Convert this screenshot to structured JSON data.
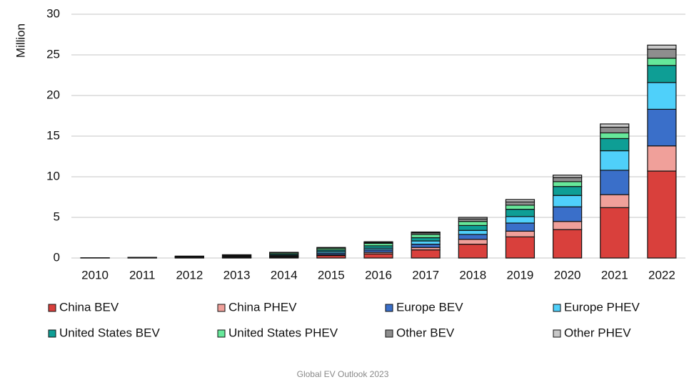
{
  "chart_data": {
    "type": "stacked_bar",
    "y_label": "Million",
    "categories": [
      "2010",
      "2011",
      "2012",
      "2013",
      "2014",
      "2015",
      "2016",
      "2017",
      "2018",
      "2019",
      "2020",
      "2021",
      "2022"
    ],
    "series": [
      {
        "name": "China BEV",
        "color": "#d9403c",
        "values": [
          0.01,
          0.01,
          0.02,
          0.03,
          0.1,
          0.3,
          0.5,
          1.0,
          1.7,
          2.6,
          3.5,
          6.2,
          10.7
        ]
      },
      {
        "name": "China PHEV",
        "color": "#f0a09a",
        "values": [
          0,
          0,
          0,
          0.01,
          0.03,
          0.1,
          0.2,
          0.3,
          0.6,
          0.7,
          1.0,
          1.6,
          3.1
        ]
      },
      {
        "name": "Europe BEV",
        "color": "#3a6fc9",
        "values": [
          0,
          0.01,
          0.03,
          0.05,
          0.1,
          0.2,
          0.3,
          0.4,
          0.6,
          1.0,
          1.8,
          3.0,
          4.5
        ]
      },
      {
        "name": "Europe PHEV",
        "color": "#4fd0fa",
        "values": [
          0,
          0.01,
          0.03,
          0.05,
          0.1,
          0.2,
          0.2,
          0.4,
          0.5,
          0.8,
          1.4,
          2.4,
          3.3
        ]
      },
      {
        "name": "United States BEV",
        "color": "#0e9e95",
        "values": [
          0.01,
          0.02,
          0.05,
          0.1,
          0.15,
          0.2,
          0.3,
          0.4,
          0.6,
          0.9,
          1.1,
          1.5,
          2.1
        ]
      },
      {
        "name": "United States PHEV",
        "color": "#66e89a",
        "values": [
          0,
          0.01,
          0.06,
          0.1,
          0.15,
          0.2,
          0.3,
          0.4,
          0.5,
          0.5,
          0.6,
          0.7,
          0.9
        ]
      },
      {
        "name": "Other BEV",
        "color": "#8e8e8e",
        "values": [
          0.01,
          0.02,
          0.03,
          0.05,
          0.05,
          0.1,
          0.1,
          0.2,
          0.3,
          0.4,
          0.5,
          0.7,
          1.1
        ]
      },
      {
        "name": "Other PHEV",
        "color": "#c8c8c8",
        "values": [
          0,
          0,
          0.01,
          0.01,
          0.02,
          0,
          0.1,
          0.1,
          0.2,
          0.3,
          0.3,
          0.4,
          0.5
        ]
      }
    ],
    "ylim": [
      0,
      30
    ],
    "yticks": [
      0,
      5,
      10,
      15,
      20,
      25,
      30
    ],
    "grid": true,
    "source": "Global EV Outlook 2023"
  }
}
